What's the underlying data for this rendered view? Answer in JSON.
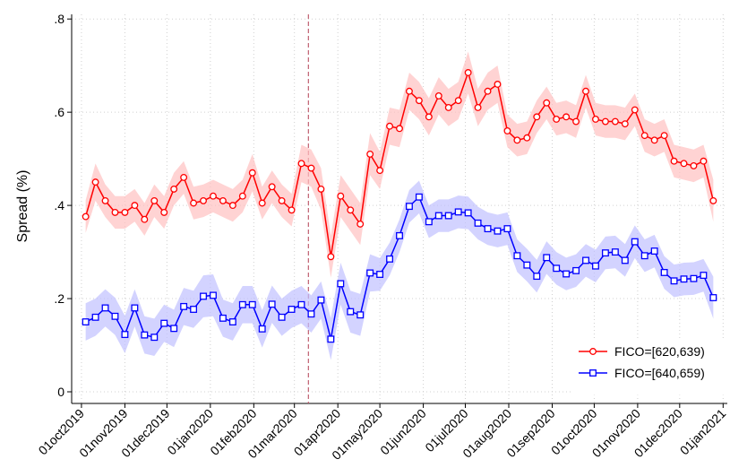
{
  "chart_data": {
    "type": "line",
    "ylabel": "Spread (%)",
    "xlim": [
      "2019-09-24",
      "2021-01-04"
    ],
    "ylim": [
      -0.025,
      0.81
    ],
    "xticks": [
      {
        "value": "2019-10-01",
        "label": "01oct2019"
      },
      {
        "value": "2019-11-01",
        "label": "01nov2019"
      },
      {
        "value": "2019-12-01",
        "label": "01dec2019"
      },
      {
        "value": "2020-01-01",
        "label": "01jan2020"
      },
      {
        "value": "2020-02-01",
        "label": "01feb2020"
      },
      {
        "value": "2020-03-01",
        "label": "01mar2020"
      },
      {
        "value": "2020-04-01",
        "label": "01apr2020"
      },
      {
        "value": "2020-05-01",
        "label": "01may2020"
      },
      {
        "value": "2020-06-01",
        "label": "01jun2020"
      },
      {
        "value": "2020-07-01",
        "label": "01jul2020"
      },
      {
        "value": "2020-08-01",
        "label": "01aug2020"
      },
      {
        "value": "2020-09-01",
        "label": "01sep2020"
      },
      {
        "value": "2020-10-01",
        "label": "01oct2020"
      },
      {
        "value": "2020-11-01",
        "label": "01nov2020"
      },
      {
        "value": "2020-12-01",
        "label": "01dec2020"
      },
      {
        "value": "2021-01-01",
        "label": "01jan2021"
      }
    ],
    "yticks": [
      0,
      {
        "value": 0.2,
        "label": ".2"
      },
      {
        "value": 0.4,
        "label": ".4"
      },
      {
        "value": 0.6,
        "label": ".6"
      },
      {
        "value": 0.8,
        "label": ".8"
      }
    ],
    "grid": true,
    "legend": "bottom-right",
    "vline": {
      "x": "2020-03-11",
      "color": "#c06070"
    },
    "x_start": "2019-10-04",
    "x_step_days": 7,
    "series": [
      {
        "name": "FICO=[620,639)",
        "color": "#ff0000",
        "band_color": "#ffc0c0",
        "marker": "circle",
        "values": [
          0.376,
          0.45,
          0.41,
          0.385,
          0.385,
          0.4,
          0.37,
          0.41,
          0.385,
          0.435,
          0.46,
          0.405,
          0.41,
          0.42,
          0.41,
          0.4,
          0.42,
          0.47,
          0.405,
          0.44,
          0.41,
          0.39,
          0.49,
          0.48,
          0.435,
          0.29,
          0.42,
          0.39,
          0.36,
          0.51,
          0.475,
          0.57,
          0.565,
          0.645,
          0.625,
          0.59,
          0.635,
          0.61,
          0.625,
          0.685,
          0.61,
          0.645,
          0.66,
          0.56,
          0.54,
          0.545,
          0.59,
          0.62,
          0.585,
          0.59,
          0.58,
          0.645,
          0.585,
          0.58,
          0.58,
          0.575,
          0.605,
          0.55,
          0.54,
          0.55,
          0.495,
          0.49,
          0.485,
          0.495,
          0.41
        ],
        "ci": [
          0.035,
          0.04,
          0.035,
          0.035,
          0.035,
          0.035,
          0.035,
          0.035,
          0.035,
          0.035,
          0.035,
          0.035,
          0.035,
          0.035,
          0.035,
          0.035,
          0.035,
          0.04,
          0.035,
          0.035,
          0.035,
          0.035,
          0.04,
          0.04,
          0.045,
          0.045,
          0.045,
          0.045,
          0.045,
          0.045,
          0.04,
          0.04,
          0.04,
          0.04,
          0.04,
          0.04,
          0.04,
          0.04,
          0.04,
          0.045,
          0.04,
          0.04,
          0.04,
          0.035,
          0.035,
          0.035,
          0.035,
          0.035,
          0.035,
          0.035,
          0.035,
          0.035,
          0.035,
          0.035,
          0.035,
          0.035,
          0.035,
          0.035,
          0.035,
          0.035,
          0.035,
          0.035,
          0.035,
          0.035,
          0.045
        ]
      },
      {
        "name": "FICO=[640,659)",
        "color": "#0000ff",
        "band_color": "#c0c0ff",
        "marker": "square",
        "values": [
          0.15,
          0.16,
          0.18,
          0.162,
          0.123,
          0.18,
          0.122,
          0.117,
          0.147,
          0.136,
          0.183,
          0.177,
          0.205,
          0.207,
          0.158,
          0.15,
          0.187,
          0.187,
          0.135,
          0.188,
          0.16,
          0.177,
          0.187,
          0.167,
          0.197,
          0.113,
          0.232,
          0.172,
          0.165,
          0.255,
          0.252,
          0.285,
          0.335,
          0.398,
          0.418,
          0.365,
          0.378,
          0.378,
          0.386,
          0.384,
          0.362,
          0.35,
          0.345,
          0.35,
          0.292,
          0.272,
          0.248,
          0.288,
          0.265,
          0.253,
          0.26,
          0.282,
          0.27,
          0.298,
          0.3,
          0.282,
          0.322,
          0.292,
          0.302,
          0.256,
          0.238,
          0.242,
          0.243,
          0.25,
          0.202
        ],
        "ci": [
          0.04,
          0.04,
          0.04,
          0.04,
          0.04,
          0.04,
          0.04,
          0.04,
          0.04,
          0.04,
          0.04,
          0.04,
          0.045,
          0.045,
          0.04,
          0.04,
          0.04,
          0.04,
          0.04,
          0.04,
          0.04,
          0.04,
          0.04,
          0.04,
          0.04,
          0.045,
          0.045,
          0.045,
          0.045,
          0.04,
          0.035,
          0.035,
          0.035,
          0.035,
          0.035,
          0.035,
          0.035,
          0.035,
          0.035,
          0.035,
          0.035,
          0.035,
          0.035,
          0.035,
          0.035,
          0.035,
          0.035,
          0.035,
          0.035,
          0.035,
          0.035,
          0.035,
          0.035,
          0.035,
          0.035,
          0.035,
          0.035,
          0.035,
          0.035,
          0.035,
          0.035,
          0.035,
          0.035,
          0.035,
          0.045
        ]
      }
    ]
  }
}
